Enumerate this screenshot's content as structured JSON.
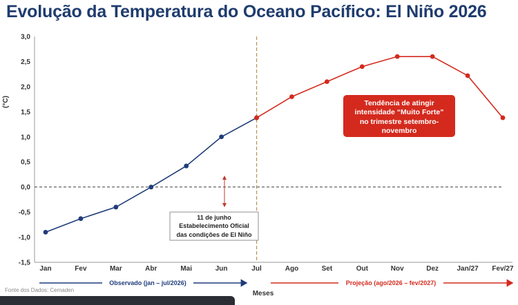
{
  "title": "Evolução da Temperatura do Oceano Pacífico: El Niño 2026",
  "chart_data": {
    "type": "line",
    "title": "Evolução da Temperatura do Oceano Pacífico: El Niño 2026",
    "ylabel": "(°C)",
    "xlabel": "Meses",
    "ylim": [
      -1.5,
      3.0
    ],
    "yticks": [
      "3,0",
      "2,5",
      "2,0",
      "1,5",
      "1,0",
      "0,5",
      "0,0",
      "-0,5",
      "-1,0",
      "-1,5"
    ],
    "categories": [
      "Jan",
      "Fev",
      "Mar",
      "Abr",
      "Mai",
      "Jun",
      "Jul",
      "Ago",
      "Set",
      "Out",
      "Nov",
      "Dez",
      "Jan/27",
      "Fev/27"
    ],
    "series": [
      {
        "name": "Observado (jan – jul/2026)",
        "color": "#1f3c7a",
        "values": [
          -0.9,
          -0.63,
          -0.4,
          0.0,
          0.42,
          1.0,
          1.38,
          null,
          null,
          null,
          null,
          null,
          null,
          null
        ]
      },
      {
        "name": "Projeção (ago/2026 – fev/2027)",
        "color": "#d42a1e",
        "values": [
          null,
          null,
          null,
          null,
          null,
          null,
          1.38,
          1.8,
          2.1,
          2.4,
          2.6,
          2.6,
          2.22,
          1.38
        ]
      }
    ],
    "grid": false,
    "reference_line_y": 0.0,
    "divider_after_category": "Jul",
    "annotations": {
      "event_lines": [
        "11 de junho",
        "Estabelecimento Oficial",
        "das condições de El Niño"
      ],
      "trend_lines": [
        "Tendência de atingir",
        "intensidade “Muito Forte”",
        "no trimestre  setembro-",
        "novembro"
      ]
    }
  },
  "source": "Fonte dos Dados: Cemaden",
  "periods": {
    "observed": "Observado (jan – jul/2026)",
    "projected": "Projeção (ago/2026 – fev/2027)"
  },
  "colors": {
    "observed": "#1f3c7a",
    "projected": "#d42a1e",
    "title": "#1f3c6e",
    "divider": "#b8975a"
  }
}
